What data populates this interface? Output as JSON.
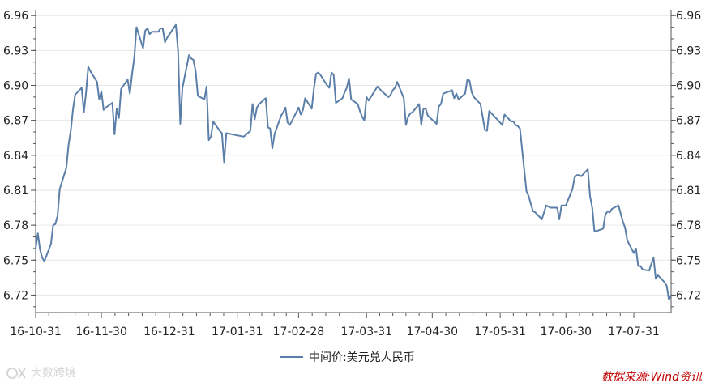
{
  "chart_data": {
    "type": "line",
    "title": "",
    "xlabel": "",
    "ylabel": "",
    "ylim": [
      6.705,
      6.965
    ],
    "y_ticks": [
      "6.72",
      "6.75",
      "6.78",
      "6.81",
      "6.84",
      "6.87",
      "6.90",
      "6.93",
      "6.96"
    ],
    "x_tick_labels": [
      "16-10-31",
      "16-11-30",
      "16-12-31",
      "17-01-31",
      "17-02-28",
      "17-03-31",
      "17-04-30",
      "17-05-31",
      "17-06-30",
      "17-07-31"
    ],
    "grid": "horizontal",
    "legend_position": "bottom",
    "series": [
      {
        "name": "中间价:美元兑人民币",
        "color": "#5b7fa8",
        "points": [
          [
            "2016-10-31",
            6.76
          ],
          [
            "2016-11-01",
            6.773
          ],
          [
            "2016-11-02",
            6.759
          ],
          [
            "2016-11-03",
            6.752
          ],
          [
            "2016-11-04",
            6.749
          ],
          [
            "2016-11-07",
            6.764
          ],
          [
            "2016-11-08",
            6.78
          ],
          [
            "2016-11-09",
            6.781
          ],
          [
            "2016-11-10",
            6.788
          ],
          [
            "2016-11-11",
            6.811
          ],
          [
            "2016-11-14",
            6.829
          ],
          [
            "2016-11-15",
            6.849
          ],
          [
            "2016-11-16",
            6.861
          ],
          [
            "2016-11-17",
            6.879
          ],
          [
            "2016-11-18",
            6.892
          ],
          [
            "2016-11-21",
            6.898
          ],
          [
            "2016-11-22",
            6.877
          ],
          [
            "2016-11-23",
            6.894
          ],
          [
            "2016-11-24",
            6.916
          ],
          [
            "2016-11-25",
            6.912
          ],
          [
            "2016-11-28",
            6.903
          ],
          [
            "2016-11-29",
            6.888
          ],
          [
            "2016-11-30",
            6.895
          ],
          [
            "2016-12-01",
            6.879
          ],
          [
            "2016-12-02",
            6.881
          ],
          [
            "2016-12-05",
            6.885
          ],
          [
            "2016-12-06",
            6.858
          ],
          [
            "2016-12-07",
            6.88
          ],
          [
            "2016-12-08",
            6.872
          ],
          [
            "2016-12-09",
            6.897
          ],
          [
            "2016-12-12",
            6.905
          ],
          [
            "2016-12-13",
            6.893
          ],
          [
            "2016-12-14",
            6.91
          ],
          [
            "2016-12-15",
            6.924
          ],
          [
            "2016-12-16",
            6.95
          ],
          [
            "2016-12-19",
            6.932
          ],
          [
            "2016-12-20",
            6.947
          ],
          [
            "2016-12-21",
            6.949
          ],
          [
            "2016-12-22",
            6.944
          ],
          [
            "2016-12-23",
            6.946
          ],
          [
            "2016-12-26",
            6.946
          ],
          [
            "2016-12-27",
            6.949
          ],
          [
            "2016-12-28",
            6.949
          ],
          [
            "2016-12-29",
            6.937
          ],
          [
            "2016-12-30",
            6.941
          ],
          [
            "2017-01-03",
            6.952
          ],
          [
            "2017-01-04",
            6.93
          ],
          [
            "2017-01-05",
            6.867
          ],
          [
            "2017-01-06",
            6.898
          ],
          [
            "2017-01-09",
            6.926
          ],
          [
            "2017-01-10",
            6.923
          ],
          [
            "2017-01-11",
            6.922
          ],
          [
            "2017-01-12",
            6.912
          ],
          [
            "2017-01-13",
            6.891
          ],
          [
            "2017-01-16",
            6.888
          ],
          [
            "2017-01-17",
            6.899
          ],
          [
            "2017-01-18",
            6.853
          ],
          [
            "2017-01-19",
            6.856
          ],
          [
            "2017-01-20",
            6.869
          ],
          [
            "2017-01-23",
            6.861
          ],
          [
            "2017-01-24",
            6.859
          ],
          [
            "2017-01-25",
            6.834
          ],
          [
            "2017-01-26",
            6.859
          ],
          [
            "2017-02-03",
            6.856
          ],
          [
            "2017-02-06",
            6.861
          ],
          [
            "2017-02-07",
            6.884
          ],
          [
            "2017-02-08",
            6.871
          ],
          [
            "2017-02-09",
            6.881
          ],
          [
            "2017-02-10",
            6.884
          ],
          [
            "2017-02-13",
            6.889
          ],
          [
            "2017-02-14",
            6.864
          ],
          [
            "2017-02-15",
            6.863
          ],
          [
            "2017-02-16",
            6.846
          ],
          [
            "2017-02-17",
            6.858
          ],
          [
            "2017-02-20",
            6.874
          ],
          [
            "2017-02-21",
            6.877
          ],
          [
            "2017-02-22",
            6.881
          ],
          [
            "2017-02-23",
            6.868
          ],
          [
            "2017-02-24",
            6.866
          ],
          [
            "2017-02-27",
            6.877
          ],
          [
            "2017-02-28",
            6.881
          ],
          [
            "2017-03-01",
            6.875
          ],
          [
            "2017-03-02",
            6.879
          ],
          [
            "2017-03-03",
            6.889
          ],
          [
            "2017-03-06",
            6.88
          ],
          [
            "2017-03-07",
            6.897
          ],
          [
            "2017-03-08",
            6.91
          ],
          [
            "2017-03-09",
            6.911
          ],
          [
            "2017-03-10",
            6.909
          ],
          [
            "2017-03-13",
            6.9
          ],
          [
            "2017-03-14",
            6.898
          ],
          [
            "2017-03-15",
            6.911
          ],
          [
            "2017-03-16",
            6.909
          ],
          [
            "2017-03-17",
            6.885
          ],
          [
            "2017-03-20",
            6.889
          ],
          [
            "2017-03-21",
            6.894
          ],
          [
            "2017-03-22",
            6.898
          ],
          [
            "2017-03-23",
            6.906
          ],
          [
            "2017-03-24",
            6.888
          ],
          [
            "2017-03-27",
            6.884
          ],
          [
            "2017-03-28",
            6.878
          ],
          [
            "2017-03-29",
            6.873
          ],
          [
            "2017-03-30",
            6.87
          ],
          [
            "2017-03-31",
            6.89
          ],
          [
            "2017-04-01",
            6.887
          ],
          [
            "2017-04-05",
            6.899
          ],
          [
            "2017-04-06",
            6.897
          ],
          [
            "2017-04-07",
            6.895
          ],
          [
            "2017-04-10",
            6.89
          ],
          [
            "2017-04-11",
            6.892
          ],
          [
            "2017-04-12",
            6.896
          ],
          [
            "2017-04-13",
            6.898
          ],
          [
            "2017-04-14",
            6.903
          ],
          [
            "2017-04-17",
            6.889
          ],
          [
            "2017-04-18",
            6.866
          ],
          [
            "2017-04-19",
            6.873
          ],
          [
            "2017-04-20",
            6.876
          ],
          [
            "2017-04-21",
            6.877
          ],
          [
            "2017-04-24",
            6.884
          ],
          [
            "2017-04-25",
            6.866
          ],
          [
            "2017-04-26",
            6.88
          ],
          [
            "2017-04-27",
            6.88
          ],
          [
            "2017-04-28",
            6.874
          ],
          [
            "2017-05-02",
            6.867
          ],
          [
            "2017-05-03",
            6.882
          ],
          [
            "2017-05-04",
            6.884
          ],
          [
            "2017-05-05",
            6.893
          ],
          [
            "2017-05-08",
            6.895
          ],
          [
            "2017-05-09",
            6.896
          ],
          [
            "2017-05-10",
            6.889
          ],
          [
            "2017-05-11",
            6.893
          ],
          [
            "2017-05-12",
            6.888
          ],
          [
            "2017-05-15",
            6.893
          ],
          [
            "2017-05-16",
            6.905
          ],
          [
            "2017-05-17",
            6.904
          ],
          [
            "2017-05-18",
            6.894
          ],
          [
            "2017-05-19",
            6.89
          ],
          [
            "2017-05-22",
            6.884
          ],
          [
            "2017-05-23",
            6.873
          ],
          [
            "2017-05-24",
            6.862
          ],
          [
            "2017-05-25",
            6.861
          ],
          [
            "2017-05-26",
            6.878
          ],
          [
            "2017-05-31",
            6.868
          ],
          [
            "2017-06-01",
            6.866
          ],
          [
            "2017-06-02",
            6.875
          ],
          [
            "2017-06-05",
            6.869
          ],
          [
            "2017-06-06",
            6.869
          ],
          [
            "2017-06-07",
            6.866
          ],
          [
            "2017-06-08",
            6.865
          ],
          [
            "2017-06-09",
            6.863
          ],
          [
            "2017-06-12",
            6.809
          ],
          [
            "2017-06-13",
            6.805
          ],
          [
            "2017-06-14",
            6.798
          ],
          [
            "2017-06-15",
            6.792
          ],
          [
            "2017-06-16",
            6.791
          ],
          [
            "2017-06-19",
            6.785
          ],
          [
            "2017-06-20",
            6.791
          ],
          [
            "2017-06-21",
            6.797
          ],
          [
            "2017-06-22",
            6.796
          ],
          [
            "2017-06-23",
            6.795
          ],
          [
            "2017-06-26",
            6.795
          ],
          [
            "2017-06-27",
            6.785
          ],
          [
            "2017-06-28",
            6.797
          ],
          [
            "2017-06-29",
            6.797
          ],
          [
            "2017-06-30",
            6.797
          ],
          [
            "2017-07-03",
            6.811
          ],
          [
            "2017-07-04",
            6.821
          ],
          [
            "2017-07-05",
            6.823
          ],
          [
            "2017-07-06",
            6.823
          ],
          [
            "2017-07-07",
            6.822
          ],
          [
            "2017-07-10",
            6.828
          ],
          [
            "2017-07-11",
            6.805
          ],
          [
            "2017-07-12",
            6.795
          ],
          [
            "2017-07-13",
            6.775
          ],
          [
            "2017-07-14",
            6.775
          ],
          [
            "2017-07-17",
            6.777
          ],
          [
            "2017-07-18",
            6.789
          ],
          [
            "2017-07-19",
            6.792
          ],
          [
            "2017-07-20",
            6.791
          ],
          [
            "2017-07-21",
            6.794
          ],
          [
            "2017-07-24",
            6.797
          ],
          [
            "2017-07-25",
            6.79
          ],
          [
            "2017-07-26",
            6.783
          ],
          [
            "2017-07-27",
            6.778
          ],
          [
            "2017-07-28",
            6.767
          ],
          [
            "2017-07-31",
            6.756
          ],
          [
            "2017-08-01",
            6.76
          ],
          [
            "2017-08-02",
            6.745
          ],
          [
            "2017-08-03",
            6.745
          ],
          [
            "2017-08-04",
            6.742
          ],
          [
            "2017-08-07",
            6.741
          ],
          [
            "2017-08-08",
            6.747
          ],
          [
            "2017-08-09",
            6.752
          ],
          [
            "2017-08-10",
            6.734
          ],
          [
            "2017-08-11",
            6.737
          ],
          [
            "2017-08-14",
            6.731
          ],
          [
            "2017-08-15",
            6.728
          ],
          [
            "2017-08-16",
            6.716
          ],
          [
            "2017-08-17",
            6.72
          ]
        ]
      }
    ]
  },
  "source_label": "数据来源:Wind资讯",
  "watermark_label": "大数跨境"
}
